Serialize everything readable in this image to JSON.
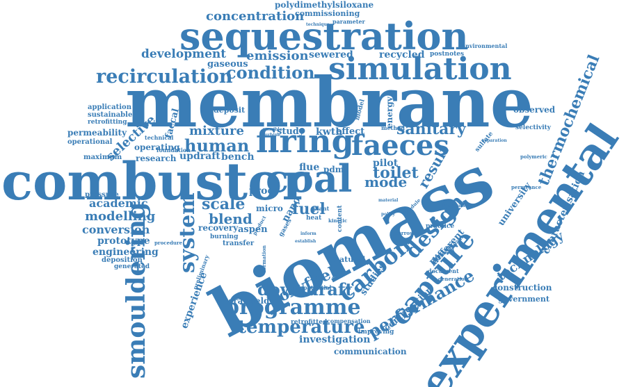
{
  "theme": {
    "word_color": "#3a7db6",
    "background": "#ffffff"
  },
  "words": [
    {
      "id": "membrane",
      "text": "membrane"
    },
    {
      "id": "combustor",
      "text": "combustor"
    },
    {
      "id": "biomass",
      "text": "biomass"
    },
    {
      "id": "experimental",
      "text": "experimental"
    },
    {
      "id": "sequestration",
      "text": "sequestration"
    },
    {
      "id": "simulation",
      "text": "simulation"
    },
    {
      "id": "coal",
      "text": "coal"
    },
    {
      "id": "firing",
      "text": "firing"
    },
    {
      "id": "faeces",
      "text": "faeces"
    },
    {
      "id": "capture",
      "text": "capture"
    },
    {
      "id": "smouldering",
      "text": "smouldering"
    },
    {
      "id": "recirculation",
      "text": "recirculation"
    },
    {
      "id": "condition",
      "text": "condition"
    },
    {
      "id": "programme",
      "text": "programme"
    },
    {
      "id": "temperature",
      "text": "temperature"
    },
    {
      "id": "carbon",
      "text": "carbon"
    },
    {
      "id": "design",
      "text": "design"
    },
    {
      "id": "performance",
      "text": "performance"
    },
    {
      "id": "thermochemical",
      "text": "thermochemical"
    },
    {
      "id": "system",
      "text": "system"
    },
    {
      "id": "human",
      "text": "human"
    },
    {
      "id": "downdraft",
      "text": "downdraft"
    },
    {
      "id": "oxyfuel",
      "text": "oxyfuel"
    },
    {
      "id": "concentration",
      "text": "concentration"
    },
    {
      "id": "development",
      "text": "development"
    },
    {
      "id": "emission",
      "text": "emission"
    },
    {
      "id": "sanitary",
      "text": "sanitary"
    },
    {
      "id": "toilet",
      "text": "toilet"
    },
    {
      "id": "result",
      "text": "result"
    },
    {
      "id": "scale",
      "text": "scale"
    },
    {
      "id": "blend",
      "text": "blend"
    },
    {
      "id": "fuel",
      "text": "fuel"
    },
    {
      "id": "mixture",
      "text": "mixture"
    },
    {
      "id": "technology",
      "text": "technology"
    },
    {
      "id": "characterisation",
      "text": "characterisation"
    },
    {
      "id": "modelling",
      "text": "modelling"
    },
    {
      "id": "academic",
      "text": "academic"
    },
    {
      "id": "conversion",
      "text": "conversion"
    },
    {
      "id": "prototype",
      "text": "prototype"
    },
    {
      "id": "engineering",
      "text": "engineering"
    },
    {
      "id": "selective",
      "text": "selective"
    },
    {
      "id": "mode",
      "text": "mode"
    },
    {
      "id": "pilot",
      "text": "pilot"
    },
    {
      "id": "flue",
      "text": "flue"
    },
    {
      "id": "investigation",
      "text": "investigation"
    },
    {
      "id": "communication",
      "text": "communication"
    },
    {
      "id": "construction",
      "text": "construction"
    },
    {
      "id": "government",
      "text": "government"
    },
    {
      "id": "composition",
      "text": "composition"
    },
    {
      "id": "experience",
      "text": "experience"
    },
    {
      "id": "cranfield",
      "text": "cranfield"
    },
    {
      "id": "updraft",
      "text": "updraft"
    },
    {
      "id": "research",
      "text": "research"
    },
    {
      "id": "bench",
      "text": "bench"
    },
    {
      "id": "operating",
      "text": "operating"
    },
    {
      "id": "recycled",
      "text": "recycled"
    },
    {
      "id": "sewered",
      "text": "sewered"
    },
    {
      "id": "gaseous",
      "text": "gaseous"
    },
    {
      "id": "polydimethylsiloxane",
      "text": "polydimethylsiloxane"
    },
    {
      "id": "commissioning",
      "text": "commissioning"
    },
    {
      "id": "parameter",
      "text": "parameter"
    },
    {
      "id": "postnotes",
      "text": "postnotes"
    },
    {
      "id": "environmental",
      "text": "environmental"
    },
    {
      "id": "observed",
      "text": "observed"
    },
    {
      "id": "selectivity",
      "text": "selectivity"
    },
    {
      "id": "deposit",
      "text": "deposit"
    },
    {
      "id": "application",
      "text": "application"
    },
    {
      "id": "sustainable",
      "text": "sustainable"
    },
    {
      "id": "retrofitting",
      "text": "retrofitting"
    },
    {
      "id": "permeability",
      "text": "permeability"
    },
    {
      "id": "operational",
      "text": "operational"
    },
    {
      "id": "maximum",
      "text": "maximum"
    },
    {
      "id": "technical",
      "text": "technical"
    },
    {
      "id": "foundation",
      "text": "foundation"
    },
    {
      "id": "study",
      "text": "study"
    },
    {
      "id": "kwth",
      "text": "kwth"
    },
    {
      "id": "effect",
      "text": "effect"
    },
    {
      "id": "energy",
      "text": "energy"
    },
    {
      "id": "pdms",
      "text": "pdms"
    },
    {
      "id": "proc",
      "text": "proc"
    },
    {
      "id": "nano",
      "text": "nano"
    },
    {
      "id": "micro",
      "text": "micro"
    },
    {
      "id": "recovery",
      "text": "recovery"
    },
    {
      "id": "aspen",
      "text": "aspen"
    },
    {
      "id": "burning",
      "text": "burning"
    },
    {
      "id": "transfer",
      "text": "transfer"
    },
    {
      "id": "pressure",
      "text": "pressure"
    },
    {
      "id": "deposition",
      "text": "deposition"
    },
    {
      "id": "generated",
      "text": "generated"
    },
    {
      "id": "natural",
      "text": "natural"
    },
    {
      "id": "studies",
      "text": "studies"
    },
    {
      "id": "power",
      "text": "power"
    },
    {
      "id": "different",
      "text": "different"
    },
    {
      "id": "university",
      "text": "university"
    },
    {
      "id": "faecal",
      "text": "faecal"
    },
    {
      "id": "retrofitted",
      "text": "retrofitted"
    },
    {
      "id": "compensation",
      "text": "compensation"
    },
    {
      "id": "improving",
      "text": "improving"
    },
    {
      "id": "potential",
      "text": "potential"
    },
    {
      "id": "preliminary",
      "text": "preliminary"
    },
    {
      "id": "formation",
      "text": "formation"
    },
    {
      "id": "document",
      "text": "document"
    },
    {
      "id": "generation",
      "text": "generation"
    },
    {
      "id": "increase",
      "text": "increase"
    },
    {
      "id": "permeance",
      "text": "permeance"
    },
    {
      "id": "polymeric",
      "text": "polymeric"
    },
    {
      "id": "separation",
      "text": "separation"
    },
    {
      "id": "sulfate",
      "text": "sulfate"
    },
    {
      "id": "heat",
      "text": "heat"
    },
    {
      "id": "plant",
      "text": "plant"
    },
    {
      "id": "kinetic",
      "text": "kinetic"
    },
    {
      "id": "gases",
      "text": "gases"
    },
    {
      "id": "content",
      "text": "content"
    },
    {
      "id": "practice",
      "text": "practice"
    },
    {
      "id": "simulant",
      "text": "simulant"
    },
    {
      "id": "corrosion",
      "text": "corrosion"
    },
    {
      "id": "model",
      "text": "model"
    },
    {
      "id": "method",
      "text": "method"
    },
    {
      "id": "procedure",
      "text": "procedure"
    },
    {
      "id": "inform",
      "text": "inform"
    },
    {
      "id": "product",
      "text": "product"
    },
    {
      "id": "module",
      "text": "module"
    },
    {
      "id": "technique",
      "text": "technique"
    },
    {
      "id": "establish",
      "text": "establish"
    },
    {
      "id": "policy",
      "text": "policy"
    },
    {
      "id": "material",
      "text": "material"
    },
    {
      "id": "possible",
      "text": "possible"
    },
    {
      "id": "turbine",
      "text": "turbine"
    }
  ]
}
